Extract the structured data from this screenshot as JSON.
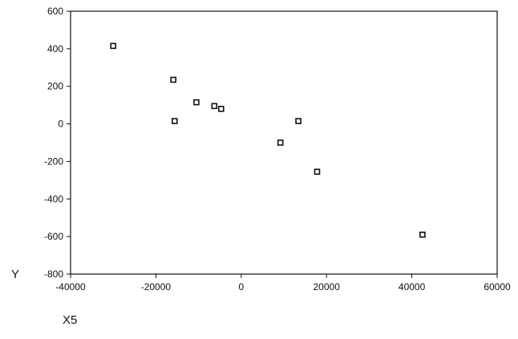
{
  "chart_data": {
    "type": "scatter",
    "xlabel": "X5",
    "ylabel": "Y",
    "xlim": [
      -40000,
      60000
    ],
    "ylim": [
      -800,
      600
    ],
    "x_ticks": [
      -40000,
      -20000,
      0,
      20000,
      40000,
      60000
    ],
    "y_ticks": [
      600,
      400,
      200,
      0,
      -200,
      -400,
      -600,
      -800
    ],
    "x_tick_labels": [
      "-40000",
      "-20000",
      "0",
      "20000",
      "40000",
      "60000"
    ],
    "y_tick_labels": [
      "600",
      "400",
      "200",
      "0",
      "-200",
      "-400",
      "-600",
      "-800"
    ],
    "grid": false,
    "marker": "square",
    "points": [
      {
        "x": -30000,
        "y": 415
      },
      {
        "x": -15900,
        "y": 235
      },
      {
        "x": -15600,
        "y": 15
      },
      {
        "x": -10500,
        "y": 115
      },
      {
        "x": -6300,
        "y": 95
      },
      {
        "x": -4700,
        "y": 80
      },
      {
        "x": 9200,
        "y": -100
      },
      {
        "x": 13400,
        "y": 15
      },
      {
        "x": 17800,
        "y": -255
      },
      {
        "x": 42500,
        "y": -590
      }
    ]
  }
}
